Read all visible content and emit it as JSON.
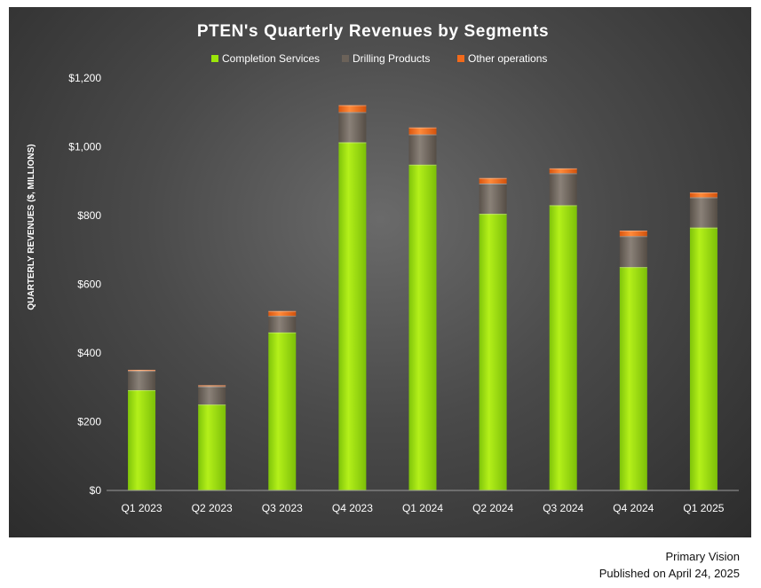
{
  "chart_data": {
    "type": "bar",
    "stacked": true,
    "title": "PTEN's Quarterly Revenues by Segments",
    "ylabel": "QUARTERLY REVENUES ($, MILLIONS)",
    "xlabel": "",
    "ylim": [
      0,
      1200
    ],
    "yticks": [
      0,
      200,
      400,
      600,
      800,
      1000,
      1200
    ],
    "ytick_labels": [
      "$0",
      "$200",
      "$400",
      "$600",
      "$800",
      "$1,000",
      "$1,200"
    ],
    "grid": false,
    "legend_position": "top",
    "categories": [
      "Q1 2023",
      "Q2 2023",
      "Q3 2023",
      "Q4 2023",
      "Q1 2024",
      "Q2 2024",
      "Q3 2024",
      "Q4 2024",
      "Q1 2025"
    ],
    "series": [
      {
        "name": "Completion Services",
        "color": "#9be60a",
        "values": [
          292,
          250,
          460,
          1013,
          948,
          805,
          830,
          650,
          765
        ]
      },
      {
        "name": "Drilling Products",
        "color": "#6b6259",
        "values": [
          56,
          53,
          48,
          88,
          88,
          88,
          93,
          90,
          88
        ]
      },
      {
        "name": "Other operations",
        "color": "#f26a1b",
        "values": [
          3,
          3,
          14,
          20,
          20,
          16,
          14,
          16,
          14
        ]
      }
    ]
  },
  "footer": {
    "source": "Primary Vision",
    "published": "Published on April 24, 2025"
  }
}
